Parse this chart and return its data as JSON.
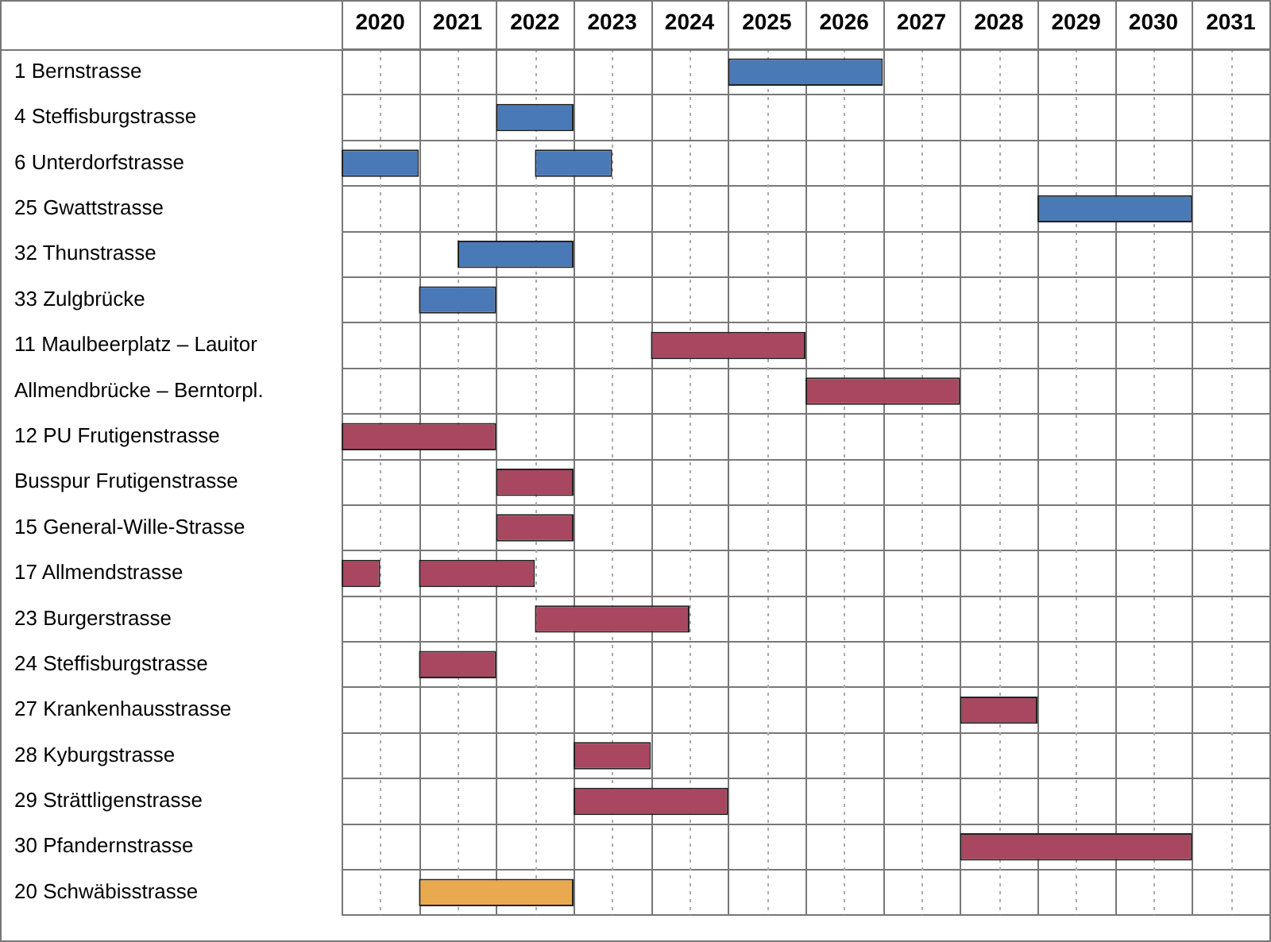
{
  "chart_data": {
    "type": "bar",
    "orientation": "horizontal",
    "grid": true,
    "legend": false,
    "categories": [
      "1 Bernstrasse",
      "4 Steffisburgstrasse",
      "6 Unterdorfstrasse",
      "25 Gwattstrasse",
      "32 Thunstrasse",
      "33 Zulgbrücke",
      "11 Maulbeerplatz – Lauitor",
      "Allmendbrücke – Berntorpl.",
      "12 PU Frutigenstrasse",
      "Busspur Frutigenstrasse",
      "15 General-Wille-Strasse",
      "17 Allmendstrasse",
      "23 Burgerstrasse",
      "24 Steffisburgstrasse",
      "27 Krankenhausstrasse",
      "28 Kyburgstrasse",
      "29 Strättligenstrasse",
      "30 Pfandernstrasse",
      "20 Schwäbisstrasse"
    ],
    "series": [
      {
        "base": [
          2025,
          2022,
          2020,
          2029,
          2021.5,
          2021,
          2024,
          2026,
          2020,
          2022,
          2022,
          2020,
          2022.5,
          2021,
          2028,
          2023,
          2023,
          2028,
          2021
        ],
        "values": [
          2,
          1,
          1,
          2,
          1.5,
          1,
          2,
          2,
          2,
          1,
          1,
          0.5,
          2,
          1,
          1,
          1,
          2,
          3,
          2
        ],
        "colors": [
          "#4a79b8",
          "#4a79b8",
          "#4a79b8",
          "#4a79b8",
          "#4a79b8",
          "#4a79b8",
          "#a8475f",
          "#a8475f",
          "#a8475f",
          "#a8475f",
          "#a8475f",
          "#a8475f",
          "#a8475f",
          "#a8475f",
          "#a8475f",
          "#a8475f",
          "#a8475f",
          "#a8475f",
          "#e8a94f"
        ]
      },
      {
        "base": [
          null,
          null,
          2022.5,
          null,
          null,
          null,
          null,
          null,
          null,
          null,
          null,
          2021,
          null,
          null,
          null,
          null,
          null,
          null,
          null
        ],
        "values": [
          null,
          null,
          1,
          null,
          null,
          null,
          null,
          null,
          null,
          null,
          null,
          1.5,
          null,
          null,
          null,
          null,
          null,
          null,
          null
        ],
        "colors": [
          null,
          null,
          "#4a79b8",
          null,
          null,
          null,
          null,
          null,
          null,
          null,
          null,
          "#a8475f",
          null,
          null,
          null,
          null,
          null,
          null,
          null
        ]
      }
    ],
    "xlim": [
      2020,
      2032
    ],
    "xticks": [
      {
        "value": 2020,
        "label": null
      },
      {
        "value": 2020.5,
        "label": "2020"
      },
      {
        "value": 2021,
        "label": null
      },
      {
        "value": 2021.5,
        "label": "2021"
      },
      {
        "value": 2022,
        "label": null
      },
      {
        "value": 2022.5,
        "label": "2022"
      },
      {
        "value": 2023,
        "label": null
      },
      {
        "value": 2023.5,
        "label": "2023"
      },
      {
        "value": 2024,
        "label": null
      },
      {
        "value": 2024.5,
        "label": "2024"
      },
      {
        "value": 2025,
        "label": null
      },
      {
        "value": 2025.5,
        "label": "2025"
      },
      {
        "value": 2026,
        "label": null
      },
      {
        "value": 2026.5,
        "label": "2026"
      },
      {
        "value": 2027,
        "label": null
      },
      {
        "value": 2027.5,
        "label": "2027"
      },
      {
        "value": 2028,
        "label": null
      },
      {
        "value": 2028.5,
        "label": "2028"
      },
      {
        "value": 2029,
        "label": null
      },
      {
        "value": 2029.5,
        "label": "2029"
      },
      {
        "value": 2030,
        "label": null
      },
      {
        "value": 2030.5,
        "label": "2030"
      },
      {
        "value": 2031,
        "label": null
      },
      {
        "value": 2031.5,
        "label": "2031"
      },
      {
        "value": 2032,
        "label": null
      }
    ]
  }
}
